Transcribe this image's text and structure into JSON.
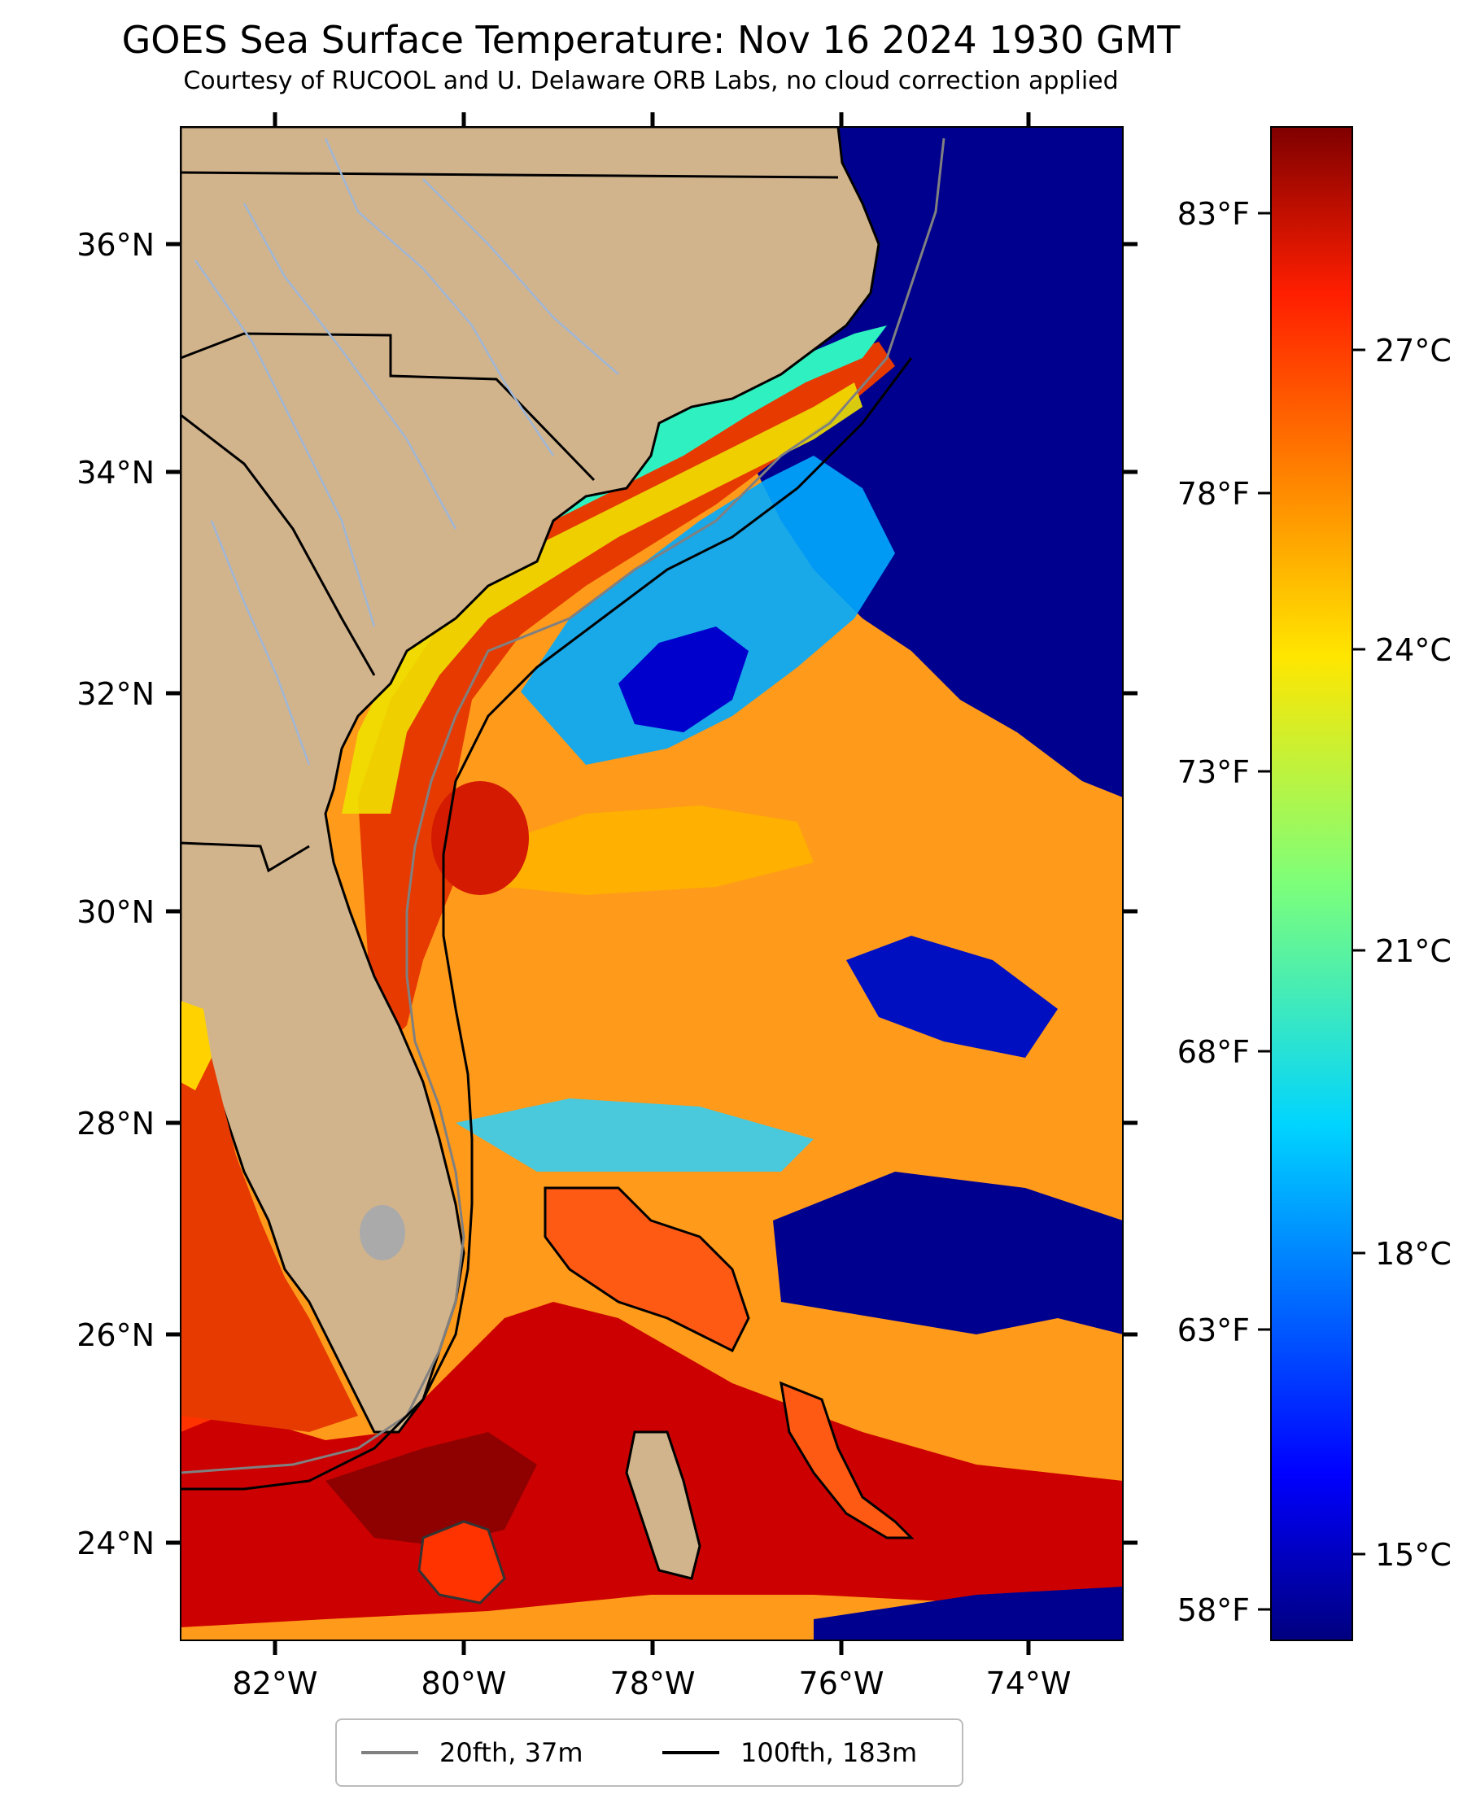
{
  "title": "GOES Sea Surface Temperature: Nov 16 2024 1930 GMT",
  "subtitle": "Courtesy of RUCOOL and U. Delaware ORB Labs, no cloud correction applied",
  "map": {
    "lon_range": [
      -83,
      -73
    ],
    "lat_range": [
      23.1,
      37
    ],
    "lat_ticks": [
      "36°N",
      "34°N",
      "32°N",
      "30°N",
      "28°N",
      "26°N",
      "24°N"
    ],
    "lon_ticks": [
      "82°W",
      "80°W",
      "78°W",
      "76°W",
      "74°W"
    ],
    "colors": {
      "land": "#d2b48c",
      "ocean_cold": "#00008f",
      "ocean_warm": "#cc0000",
      "coast": "#000000",
      "rivers": "#9fb6d6",
      "contour_20fth": "#808080",
      "contour_100fth": "#000000"
    }
  },
  "colorbar": {
    "colormap": "jet",
    "celsius_ticks": [
      "27°C",
      "24°C",
      "21°C",
      "18°C",
      "15°C"
    ],
    "fahrenheit_ticks": [
      "83°F",
      "78°F",
      "73°F",
      "68°F",
      "63°F",
      "58°F"
    ]
  },
  "legend": {
    "items": [
      {
        "label": "20fth, 37m",
        "color": "#808080"
      },
      {
        "label": "100fth, 183m",
        "color": "#000000"
      }
    ]
  }
}
